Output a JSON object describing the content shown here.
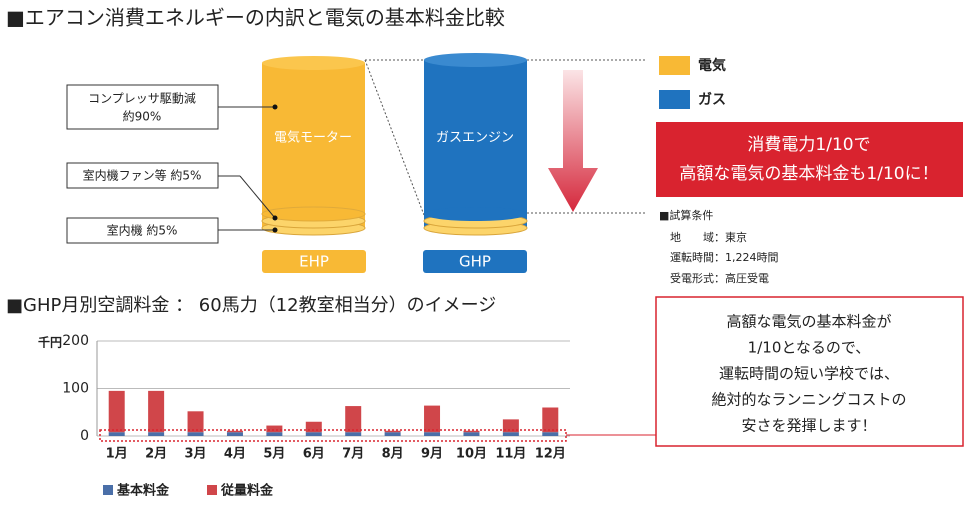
{
  "title1": "■エアコン消費エネルギーの内訳と電気の基本料金比較",
  "callouts": [
    {
      "lines": [
        "コンプレッサ駆動減",
        "約90%"
      ]
    },
    {
      "lines": [
        "室内機ファン等 約5%"
      ]
    },
    {
      "lines": [
        "室内機 約5%"
      ]
    }
  ],
  "cylinders": [
    {
      "inner": "電気モーター",
      "label": "EHP"
    },
    {
      "inner": "ガスエンジン",
      "label": "GHP"
    }
  ],
  "legend_top": [
    "電気",
    "ガス"
  ],
  "highlight": [
    "消費電力1/10で",
    "高額な電気の基本料金も1/10に！"
  ],
  "conditions": {
    "heading": "■試算条件",
    "lines": [
      "地　　域：東京",
      "運転時間：1,224時間",
      "受電形式：高圧受電"
    ]
  },
  "title2": "■GHP月別空調料金 ： 60馬力（12教室相当分）のイメージ",
  "message": [
    "高額な電気の基本料金が",
    "1/10となるので、",
    "運転時間の短い学校では、",
    "絶対的なランニングコストの",
    "安さを発揮します！"
  ],
  "chart_data": {
    "type": "bar",
    "stacked": true,
    "y_label": "千円",
    "categories": [
      "1月",
      "2月",
      "3月",
      "4月",
      "5月",
      "6月",
      "7月",
      "8月",
      "9月",
      "10月",
      "11月",
      "12月"
    ],
    "series": [
      {
        "name": "基本料金",
        "color": "#4a6fa8",
        "values": [
          8,
          8,
          8,
          8,
          8,
          8,
          8,
          8,
          8,
          8,
          8,
          8
        ]
      },
      {
        "name": "従量料金",
        "color": "#d0464a",
        "values": [
          87,
          87,
          44,
          3,
          14,
          22,
          55,
          3,
          56,
          3,
          27,
          52
        ]
      }
    ],
    "ylim": [
      0,
      200
    ],
    "yticks": [
      0,
      100,
      200
    ],
    "grid": true
  }
}
